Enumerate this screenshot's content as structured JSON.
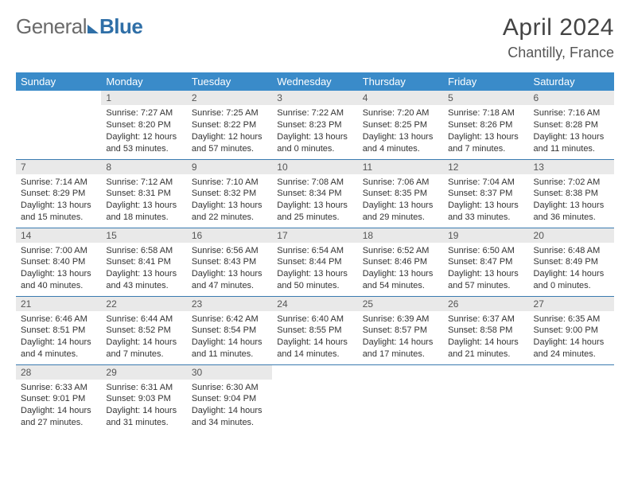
{
  "logo": {
    "part1": "General",
    "part2": "Blue"
  },
  "title": "April 2024",
  "location": "Chantilly, France",
  "colors": {
    "header_bg": "#3a8bc9",
    "header_fg": "#ffffff",
    "daynum_bg": "#e9e9e9",
    "row_border": "#3a7bb0",
    "logo_gray": "#6a6a6a",
    "logo_blue": "#2f6fa7"
  },
  "weekdays": [
    "Sunday",
    "Monday",
    "Tuesday",
    "Wednesday",
    "Thursday",
    "Friday",
    "Saturday"
  ],
  "first_weekday_index": 1,
  "days": [
    {
      "n": 1,
      "sunrise": "7:27 AM",
      "sunset": "8:20 PM",
      "daylight": "12 hours and 53 minutes."
    },
    {
      "n": 2,
      "sunrise": "7:25 AM",
      "sunset": "8:22 PM",
      "daylight": "12 hours and 57 minutes."
    },
    {
      "n": 3,
      "sunrise": "7:22 AM",
      "sunset": "8:23 PM",
      "daylight": "13 hours and 0 minutes."
    },
    {
      "n": 4,
      "sunrise": "7:20 AM",
      "sunset": "8:25 PM",
      "daylight": "13 hours and 4 minutes."
    },
    {
      "n": 5,
      "sunrise": "7:18 AM",
      "sunset": "8:26 PM",
      "daylight": "13 hours and 7 minutes."
    },
    {
      "n": 6,
      "sunrise": "7:16 AM",
      "sunset": "8:28 PM",
      "daylight": "13 hours and 11 minutes."
    },
    {
      "n": 7,
      "sunrise": "7:14 AM",
      "sunset": "8:29 PM",
      "daylight": "13 hours and 15 minutes."
    },
    {
      "n": 8,
      "sunrise": "7:12 AM",
      "sunset": "8:31 PM",
      "daylight": "13 hours and 18 minutes."
    },
    {
      "n": 9,
      "sunrise": "7:10 AM",
      "sunset": "8:32 PM",
      "daylight": "13 hours and 22 minutes."
    },
    {
      "n": 10,
      "sunrise": "7:08 AM",
      "sunset": "8:34 PM",
      "daylight": "13 hours and 25 minutes."
    },
    {
      "n": 11,
      "sunrise": "7:06 AM",
      "sunset": "8:35 PM",
      "daylight": "13 hours and 29 minutes."
    },
    {
      "n": 12,
      "sunrise": "7:04 AM",
      "sunset": "8:37 PM",
      "daylight": "13 hours and 33 minutes."
    },
    {
      "n": 13,
      "sunrise": "7:02 AM",
      "sunset": "8:38 PM",
      "daylight": "13 hours and 36 minutes."
    },
    {
      "n": 14,
      "sunrise": "7:00 AM",
      "sunset": "8:40 PM",
      "daylight": "13 hours and 40 minutes."
    },
    {
      "n": 15,
      "sunrise": "6:58 AM",
      "sunset": "8:41 PM",
      "daylight": "13 hours and 43 minutes."
    },
    {
      "n": 16,
      "sunrise": "6:56 AM",
      "sunset": "8:43 PM",
      "daylight": "13 hours and 47 minutes."
    },
    {
      "n": 17,
      "sunrise": "6:54 AM",
      "sunset": "8:44 PM",
      "daylight": "13 hours and 50 minutes."
    },
    {
      "n": 18,
      "sunrise": "6:52 AM",
      "sunset": "8:46 PM",
      "daylight": "13 hours and 54 minutes."
    },
    {
      "n": 19,
      "sunrise": "6:50 AM",
      "sunset": "8:47 PM",
      "daylight": "13 hours and 57 minutes."
    },
    {
      "n": 20,
      "sunrise": "6:48 AM",
      "sunset": "8:49 PM",
      "daylight": "14 hours and 0 minutes."
    },
    {
      "n": 21,
      "sunrise": "6:46 AM",
      "sunset": "8:51 PM",
      "daylight": "14 hours and 4 minutes."
    },
    {
      "n": 22,
      "sunrise": "6:44 AM",
      "sunset": "8:52 PM",
      "daylight": "14 hours and 7 minutes."
    },
    {
      "n": 23,
      "sunrise": "6:42 AM",
      "sunset": "8:54 PM",
      "daylight": "14 hours and 11 minutes."
    },
    {
      "n": 24,
      "sunrise": "6:40 AM",
      "sunset": "8:55 PM",
      "daylight": "14 hours and 14 minutes."
    },
    {
      "n": 25,
      "sunrise": "6:39 AM",
      "sunset": "8:57 PM",
      "daylight": "14 hours and 17 minutes."
    },
    {
      "n": 26,
      "sunrise": "6:37 AM",
      "sunset": "8:58 PM",
      "daylight": "14 hours and 21 minutes."
    },
    {
      "n": 27,
      "sunrise": "6:35 AM",
      "sunset": "9:00 PM",
      "daylight": "14 hours and 24 minutes."
    },
    {
      "n": 28,
      "sunrise": "6:33 AM",
      "sunset": "9:01 PM",
      "daylight": "14 hours and 27 minutes."
    },
    {
      "n": 29,
      "sunrise": "6:31 AM",
      "sunset": "9:03 PM",
      "daylight": "14 hours and 31 minutes."
    },
    {
      "n": 30,
      "sunrise": "6:30 AM",
      "sunset": "9:04 PM",
      "daylight": "14 hours and 34 minutes."
    }
  ],
  "labels": {
    "sunrise": "Sunrise:",
    "sunset": "Sunset:",
    "daylight": "Daylight:"
  }
}
